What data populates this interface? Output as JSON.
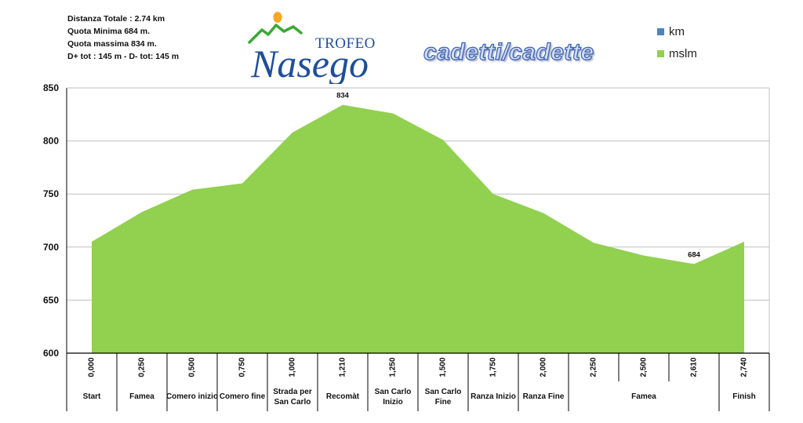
{
  "info": {
    "lines": [
      "Distanza Totale : 2.74 km",
      "Quota Minima 684 m.",
      "Quota massima 834 m.",
      "D+ tot : 145 m - D- tot: 145 m"
    ]
  },
  "logo": {
    "word_top": "TROFEO",
    "word_main": "Nasego"
  },
  "subtitle": "cadetti/cadette",
  "colors": {
    "area": "#92d050",
    "km": "#4f81bd",
    "grid": "#c0c0c0",
    "axis": "#000000"
  },
  "chart_data": {
    "type": "area",
    "title": "",
    "ylim": [
      600,
      850
    ],
    "yticks": [
      600,
      650,
      700,
      750,
      800,
      850
    ],
    "grid": true,
    "legend": {
      "position": "top-right",
      "entries": [
        {
          "name": "km",
          "color": "#4f81bd"
        },
        {
          "name": "mslm",
          "color": "#92d050"
        }
      ]
    },
    "x": [
      "0,000",
      "0,250",
      "0,500",
      "0,750",
      "1,000",
      "1,210",
      "1,250",
      "1,500",
      "1,750",
      "2,000",
      "2,250",
      "2,500",
      "2,610",
      "2,740"
    ],
    "points": [
      {
        "label": "",
        "value": 705
      },
      {
        "label": "",
        "value": 733
      },
      {
        "label": "",
        "value": 754
      },
      {
        "label": "",
        "value": 760
      },
      {
        "label": "",
        "value": 808
      },
      {
        "label": "",
        "value": 834
      },
      {
        "label": "",
        "value": 826
      },
      {
        "label": "",
        "value": 801
      },
      {
        "label": "",
        "value": 750
      },
      {
        "label": "",
        "value": 732
      },
      {
        "label": "",
        "value": 704
      },
      {
        "label": "",
        "value": 692
      },
      {
        "label": "",
        "value": 684
      },
      {
        "label": "",
        "value": 705
      }
    ],
    "place_labels": [
      {
        "text": [
          "Start"
        ],
        "from": 0,
        "to": 0
      },
      {
        "text": [
          "Famea"
        ],
        "from": 1,
        "to": 1
      },
      {
        "text": [
          "Comero inizio"
        ],
        "from": 2,
        "to": 2
      },
      {
        "text": [
          "Comero fine"
        ],
        "from": 3,
        "to": 3
      },
      {
        "text": [
          "Strada per",
          "San Carlo"
        ],
        "from": 4,
        "to": 4
      },
      {
        "text": [
          "Recomàt"
        ],
        "from": 5,
        "to": 5
      },
      {
        "text": [
          "San Carlo",
          "Inizio"
        ],
        "from": 6,
        "to": 6
      },
      {
        "text": [
          "San Carlo",
          "Fine"
        ],
        "from": 7,
        "to": 7
      },
      {
        "text": [
          "Ranza Inizio"
        ],
        "from": 8,
        "to": 8
      },
      {
        "text": [
          "Ranza Fine"
        ],
        "from": 9,
        "to": 9
      },
      {
        "text": [
          "Famea"
        ],
        "from": 10,
        "to": 12
      },
      {
        "text": [
          "Finish"
        ],
        "from": 13,
        "to": 13
      }
    ],
    "data_labels": [
      {
        "index": 5,
        "text": "834"
      },
      {
        "index": 12,
        "text": "684"
      }
    ]
  }
}
